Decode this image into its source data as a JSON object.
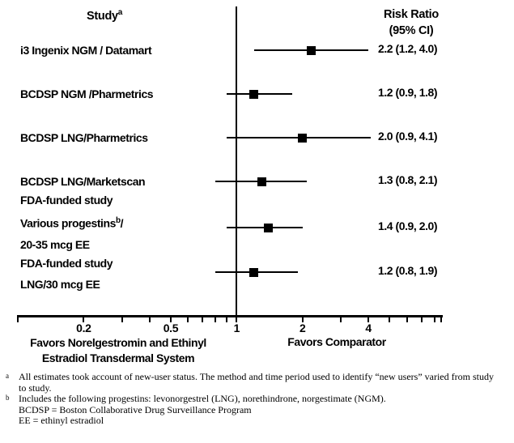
{
  "figure": {
    "footnotes": [
      {
        "marker": "a",
        "lines": [
          "All estimates took account of new-user status. The method and time period used to identify “new users” varied from study to study."
        ]
      },
      {
        "marker": "b",
        "lines": [
          "Includes the following progestins: levonorgestrel (LNG), norethindrone, norgestimate (NGM).",
          "BCDSP = Boston Collaborative Drug Surveillance Program",
          "EE = ethinyl estradiol"
        ]
      }
    ],
    "colors": {
      "ink": "#000000",
      "background": "#ffffff"
    }
  },
  "chart_data": {
    "type": "forest",
    "x_scale": "log10",
    "col_headers": {
      "study": "Study",
      "study_sup": "a",
      "value_line1": "Risk Ratio",
      "value_line2": "(95% CI)"
    },
    "x_axis": {
      "min": 0.1,
      "max": 8.6,
      "reference_line": 1,
      "ticks": [
        0.1,
        0.2,
        0.3,
        0.4,
        0.5,
        0.6,
        0.7,
        0.8,
        0.9,
        1,
        2,
        3,
        4,
        5,
        6,
        7,
        8
      ],
      "labeled_ticks": [
        {
          "v": 0.2,
          "label": "0.2"
        },
        {
          "v": 0.5,
          "label": "0.5"
        },
        {
          "v": 1,
          "label": "1"
        },
        {
          "v": 2,
          "label": "2"
        },
        {
          "v": 4,
          "label": "4"
        }
      ]
    },
    "favors_left": [
      "Favors Norelgestromin and Ethinyl",
      "Estradiol Transdermal System"
    ],
    "favors_right": "Favors Comparator",
    "studies": [
      {
        "label_lines": [
          [
            {
              "t": "i3 Ingenix NGM / Datamart"
            }
          ]
        ],
        "estimate": 2.2,
        "ci_low": 1.2,
        "ci_high": 4.0,
        "display": "2.2 (1.2, 4.0)"
      },
      {
        "label_lines": [
          [
            {
              "t": "BCDSP NGM /Pharmetrics"
            }
          ]
        ],
        "estimate": 1.2,
        "ci_low": 0.9,
        "ci_high": 1.8,
        "display": "1.2 (0.9, 1.8)"
      },
      {
        "label_lines": [
          [
            {
              "t": "BCDSP LNG/Pharmetrics"
            }
          ]
        ],
        "estimate": 2.0,
        "ci_low": 0.9,
        "ci_high": 4.1,
        "display": "2.0 (0.9, 4.1)"
      },
      {
        "label_lines": [
          [
            {
              "t": "BCDSP LNG/Marketscan"
            }
          ]
        ],
        "estimate": 1.3,
        "ci_low": 0.8,
        "ci_high": 2.1,
        "display": "1.3 (0.8, 2.1)"
      },
      {
        "label_lines": [
          [
            {
              "t": "FDA-funded study"
            }
          ],
          [
            {
              "t": "Various progestins"
            },
            {
              "t": "b",
              "sup": true
            },
            {
              "t": "/"
            }
          ],
          [
            {
              "t": "20-35 mcg EE"
            }
          ]
        ],
        "estimate": 1.4,
        "ci_low": 0.9,
        "ci_high": 2.0,
        "display": "1.4 (0.9, 2.0)"
      },
      {
        "label_lines": [
          [
            {
              "t": "FDA-funded study"
            }
          ],
          [
            {
              "t": "LNG/30 mcg EE"
            }
          ]
        ],
        "estimate": 1.2,
        "ci_low": 0.8,
        "ci_high": 1.9,
        "display": "1.2 (0.8, 1.9)"
      }
    ]
  }
}
